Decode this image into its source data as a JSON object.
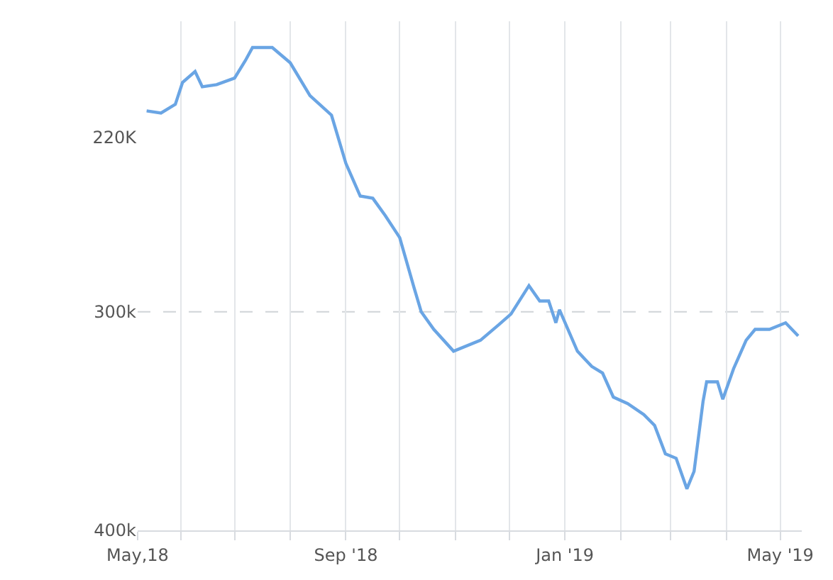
{
  "chart_data": {
    "type": "line",
    "x": [
      "2018-05-13",
      "2018-05-21",
      "2018-05-29",
      "2018-06-02",
      "2018-06-09",
      "2018-06-13",
      "2018-06-21",
      "2018-07-01",
      "2018-07-07",
      "2018-07-11",
      "2018-07-22",
      "2018-08-01",
      "2018-08-12",
      "2018-08-24",
      "2018-09-01",
      "2018-09-09",
      "2018-09-16",
      "2018-09-23",
      "2018-10-01",
      "2018-10-09",
      "2018-10-13",
      "2018-10-20",
      "2018-10-31",
      "2018-11-15",
      "2018-11-25",
      "2018-12-02",
      "2018-12-12",
      "2018-12-18",
      "2018-12-23",
      "2018-12-27",
      "2018-12-29",
      "2019-01-08",
      "2019-01-16",
      "2019-01-22",
      "2019-01-28",
      "2019-02-05",
      "2019-02-14",
      "2019-02-20",
      "2019-02-26",
      "2019-03-04",
      "2019-03-10",
      "2019-03-14",
      "2019-03-19",
      "2019-03-21",
      "2019-03-27",
      "2019-03-30",
      "2019-04-05",
      "2019-04-12",
      "2019-04-17",
      "2019-04-25",
      "2019-05-04",
      "2019-05-11"
    ],
    "series": [
      {
        "color": "#6aa5e4",
        "values": [
          208000,
          209000,
          205000,
          195000,
          190000,
          197000,
          196000,
          193000,
          185000,
          179000,
          179000,
          186000,
          201000,
          210000,
          232000,
          247000,
          248000,
          256000,
          266000,
          289000,
          300000,
          308000,
          318000,
          313000,
          306000,
          301000,
          288000,
          295000,
          295000,
          305000,
          299000,
          318000,
          325000,
          328000,
          339000,
          342000,
          347000,
          352000,
          365000,
          367000,
          381000,
          373000,
          341000,
          332000,
          332000,
          340000,
          326000,
          313000,
          308000,
          308000,
          305000,
          311000
        ]
      }
    ],
    "xlim": [
      "2018-05-08",
      "2019-05-13"
    ],
    "xticks": [
      {
        "value": "2018-05-08",
        "label": "May,18"
      },
      {
        "value": "2018-06-01",
        "label": null
      },
      {
        "value": "2018-07-01",
        "label": null
      },
      {
        "value": "2018-08-01",
        "label": null
      },
      {
        "value": "2018-09-01",
        "label": "Sep '18"
      },
      {
        "value": "2018-10-01",
        "label": null
      },
      {
        "value": "2018-11-01",
        "label": null
      },
      {
        "value": "2018-12-01",
        "label": null
      },
      {
        "value": "2019-01-01",
        "label": "Jan '19"
      },
      {
        "value": "2019-02-01",
        "label": null
      },
      {
        "value": "2019-03-01",
        "label": null
      },
      {
        "value": "2019-04-01",
        "label": null
      },
      {
        "value": "2019-05-01",
        "label": "May '19"
      }
    ],
    "ylim": [
      400000,
      167000
    ],
    "yticks": [
      {
        "value": 220000,
        "label": "220K"
      },
      {
        "value": 300000,
        "label": "300k"
      },
      {
        "value": 400000,
        "label": "400k"
      }
    ],
    "ref_lines": [
      {
        "axis": "y",
        "value": 300000,
        "label": null,
        "color": "#d0d4d8",
        "line_style": "dashed"
      }
    ],
    "grid": "x",
    "legend": false,
    "marker": "none",
    "line_style": "solid"
  }
}
